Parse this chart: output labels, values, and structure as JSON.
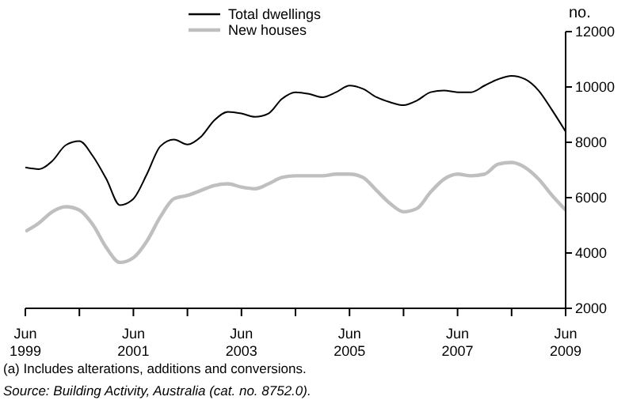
{
  "chart_data": {
    "type": "line",
    "ylabel": "no.",
    "legend": "top",
    "grid": false,
    "marker": "none",
    "line_style": "solid",
    "x": [
      "1999-06",
      "1999-09",
      "1999-12",
      "2000-03",
      "2000-06",
      "2000-09",
      "2000-12",
      "2001-03",
      "2001-06",
      "2001-09",
      "2001-12",
      "2002-03",
      "2002-06",
      "2002-09",
      "2002-12",
      "2003-03",
      "2003-06",
      "2003-09",
      "2003-12",
      "2004-03",
      "2004-06",
      "2004-09",
      "2004-12",
      "2005-03",
      "2005-06",
      "2005-09",
      "2005-12",
      "2006-03",
      "2006-06",
      "2006-09",
      "2006-12",
      "2007-03",
      "2007-06",
      "2007-09",
      "2007-12",
      "2008-03",
      "2008-06",
      "2008-09",
      "2008-12",
      "2009-03",
      "2009-06"
    ],
    "series": [
      {
        "name": "Total dwellings",
        "color": "#000000",
        "values": [
          7090,
          7030,
          7330,
          7900,
          8040,
          7500,
          6670,
          5730,
          5960,
          6850,
          7860,
          8100,
          7920,
          8200,
          8800,
          9100,
          9040,
          8920,
          9040,
          9570,
          9810,
          9750,
          9630,
          9810,
          10050,
          9930,
          9630,
          9450,
          9340,
          9510,
          9810,
          9870,
          9810,
          9810,
          10050,
          10280,
          10400,
          10280,
          9870,
          9160,
          8390
        ]
      },
      {
        "name": "New houses",
        "color": "#bfbfbf",
        "values": [
          4780,
          5080,
          5490,
          5670,
          5550,
          5020,
          4190,
          3660,
          3830,
          4430,
          5310,
          5960,
          6080,
          6260,
          6440,
          6500,
          6380,
          6320,
          6500,
          6730,
          6790,
          6790,
          6790,
          6850,
          6850,
          6730,
          6260,
          5790,
          5490,
          5610,
          6200,
          6670,
          6850,
          6790,
          6850,
          7210,
          7270,
          7090,
          6670,
          6080,
          5550
        ]
      }
    ],
    "xlim": [
      "1999-06",
      "2009-06"
    ],
    "xticks": [
      {
        "value": "1999-06",
        "label": "Jun 1999"
      },
      {
        "value": "2000-06",
        "label": null
      },
      {
        "value": "2001-06",
        "label": "Jun 2001"
      },
      {
        "value": "2002-06",
        "label": null
      },
      {
        "value": "2003-06",
        "label": "Jun 2003"
      },
      {
        "value": "2004-06",
        "label": null
      },
      {
        "value": "2005-06",
        "label": "Jun 2005"
      },
      {
        "value": "2006-06",
        "label": null
      },
      {
        "value": "2007-06",
        "label": "Jun 2007"
      },
      {
        "value": "2008-06",
        "label": null
      },
      {
        "value": "2009-06",
        "label": "Jun 2009"
      }
    ],
    "ylim": [
      2000,
      12000
    ],
    "yticks": [
      2000,
      4000,
      6000,
      8000,
      10000,
      12000
    ],
    "annotations": [
      "(a) Includes alterations, additions and conversions.",
      "Source: Building Activity, Australia (cat. no. 8752.0)."
    ]
  }
}
